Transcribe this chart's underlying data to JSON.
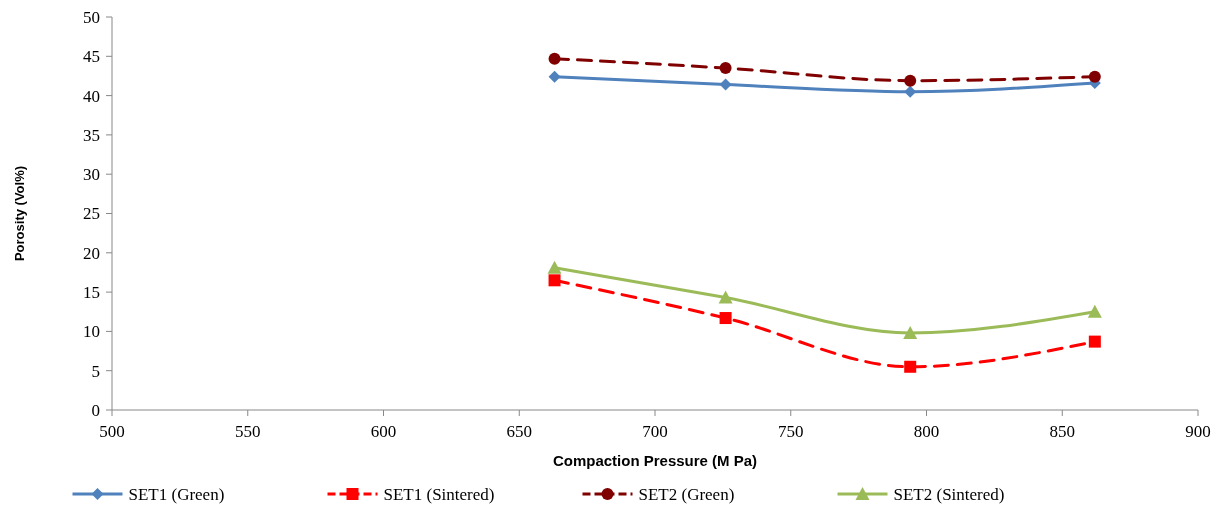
{
  "chart_data": {
    "type": "line",
    "xlabel": "Compaction Pressure (M Pa)",
    "ylabel": "Porosity (Vol%)",
    "x": [
      663,
      726,
      794,
      862
    ],
    "series": [
      {
        "name": "SET1 (Green)",
        "color": "#4f81bd",
        "values": [
          42.4,
          41.4,
          40.5,
          41.6
        ],
        "marker": "diamond",
        "line_style": "solid"
      },
      {
        "name": "SET1 (Sintered)",
        "color": "#ff0000",
        "values": [
          16.5,
          11.7,
          5.5,
          8.7
        ],
        "marker": "square",
        "line_style": "dashed"
      },
      {
        "name": "SET2 (Green)",
        "color": "#800000",
        "values": [
          44.7,
          43.5,
          41.9,
          42.4
        ],
        "marker": "circle",
        "line_style": "dashed"
      },
      {
        "name": "SET2 (Sintered)",
        "color": "#9bbb59",
        "values": [
          18.1,
          14.3,
          9.8,
          12.5
        ],
        "marker": "triangle",
        "line_style": "solid"
      }
    ],
    "xlim": [
      500,
      900
    ],
    "xticks": [
      500,
      550,
      600,
      650,
      700,
      750,
      800,
      850,
      900
    ],
    "ylim": [
      0,
      50
    ],
    "yticks": [
      0,
      5,
      10,
      15,
      20,
      25,
      30,
      35,
      40,
      45,
      50
    ],
    "grid": false,
    "legend": "bottom"
  }
}
